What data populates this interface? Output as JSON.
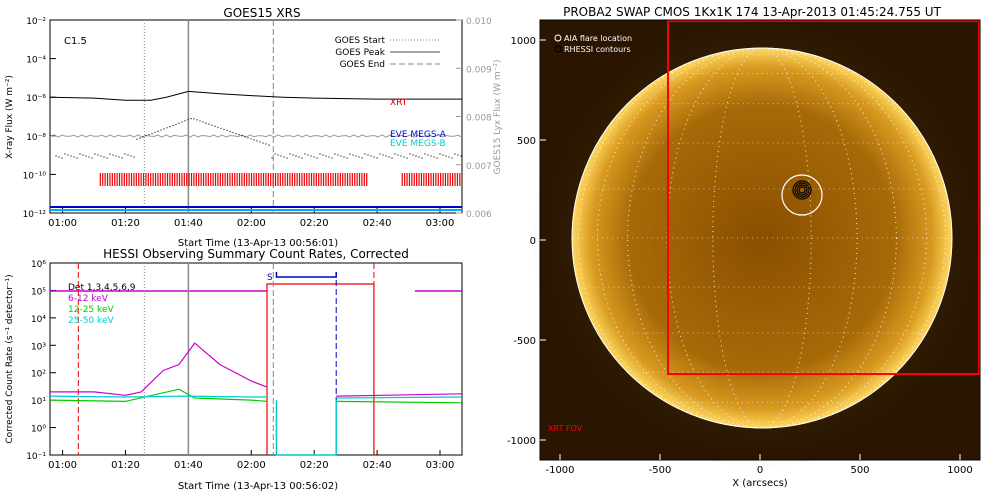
{
  "chart_data": [
    {
      "type": "line",
      "title": "GOES15 XRS",
      "flare_class": "C1.5",
      "xlabel": "Start Time (13-Apr-13 00:56:01)",
      "ylabel": "X-ray Flux (W m⁻²)",
      "ylabel_right": "GOES15 Lyx Flux (W m⁻²)",
      "y_scale": "log",
      "ylim": [
        1e-12,
        0.01
      ],
      "ylim_right": [
        0.006,
        0.01
      ],
      "x_ticks": [
        "01:00",
        "01:20",
        "01:40",
        "02:00",
        "02:20",
        "02:40",
        "03:00"
      ],
      "y_ticks": [
        "10⁻²",
        "10⁻⁴",
        "10⁻⁶",
        "10⁻⁸",
        "10⁻¹⁰",
        "10⁻¹²"
      ],
      "y_ticks_right": [
        "0.010",
        "0.009",
        "0.008",
        "0.007",
        "0.006"
      ],
      "legend": [
        "GOES Start",
        "GOES Peak",
        "GOES End"
      ],
      "markers": {
        "start": "01:26",
        "peak": "01:40",
        "end": "02:07"
      },
      "series": [
        {
          "name": "XRT",
          "color": "#cc0000",
          "x": [
            "00:56",
            "01:10",
            "01:20",
            "01:28",
            "01:33",
            "01:40",
            "01:50",
            "02:00",
            "02:10",
            "02:20",
            "02:40",
            "03:00",
            "03:07"
          ],
          "values": [
            1e-06,
            9e-07,
            7e-07,
            7e-07,
            1e-06,
            2e-06,
            1.5e-06,
            1.2e-06,
            1e-06,
            9e-07,
            8e-07,
            8e-07,
            8e-07
          ]
        },
        {
          "name": "EVE MEGS-A",
          "color": "#0000cc"
        },
        {
          "name": "EVE MEGS-B",
          "color": "#00cccc"
        }
      ]
    },
    {
      "type": "line",
      "title": "HESSI Observing Summary Count Rates, Corrected",
      "xlabel": "Start Time (13-Apr-13 00:56:02)",
      "ylabel": "Corrected Count Rate (s⁻¹ detector⁻¹)",
      "y_scale": "log",
      "ylim": [
        0.1,
        1000000.0
      ],
      "x_ticks": [
        "01:00",
        "01:20",
        "01:40",
        "02:00",
        "02:20",
        "02:40",
        "03:00"
      ],
      "y_ticks": [
        "10⁶",
        "10⁵",
        "10⁴",
        "10³",
        "10²",
        "10¹",
        "10⁰",
        "10⁻¹"
      ],
      "annotation": "S",
      "series": [
        {
          "name": "Det 1,3,4,5,6,9",
          "color": "#000000"
        },
        {
          "name": "6-12 keV",
          "color": "#cc00cc",
          "x": [
            "00:56",
            "01:10",
            "01:20",
            "01:25",
            "01:32",
            "01:37",
            "01:42",
            "01:50",
            "02:00",
            "02:05"
          ],
          "values": [
            20,
            20,
            15,
            20,
            120,
            200,
            1200,
            200,
            50,
            30
          ]
        },
        {
          "name": "12-25 keV",
          "color": "#00cc00",
          "x": [
            "00:56",
            "01:20",
            "01:37",
            "01:42",
            "02:00",
            "02:05"
          ],
          "values": [
            10,
            9,
            25,
            12,
            10,
            9
          ]
        },
        {
          "name": "25-50 keV",
          "color": "#00cccc",
          "x": [
            "00:56",
            "01:20",
            "01:40",
            "02:00",
            "02:05"
          ],
          "values": [
            14,
            13,
            14,
            13,
            13
          ]
        }
      ]
    },
    {
      "type": "other",
      "title": "PROBA2 SWAP CMOS 1Kx1K 174  13-Apr-2013 01:45:24.755 UT",
      "xlabel": "X (arcsecs)",
      "x_ticks": [
        "-1000",
        "-500",
        "0",
        "500",
        "1000"
      ],
      "y_ticks": [
        "1000",
        "500",
        "0",
        "-500",
        "-1000"
      ],
      "legend": [
        "AIA flare location",
        "RHESSI contours"
      ],
      "fov_label": "XRT FOV"
    }
  ]
}
